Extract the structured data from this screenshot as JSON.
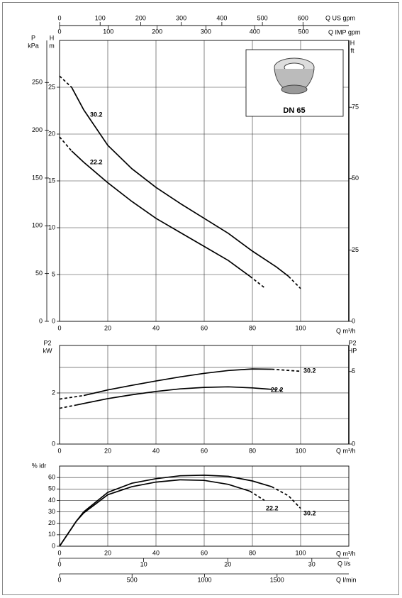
{
  "chart_data": [
    {
      "type": "line",
      "inset": "DN 65",
      "xlabel": "Q m³/h",
      "xlim": [
        0,
        120
      ],
      "xticks": [
        0,
        20,
        40,
        60,
        80,
        100
      ],
      "ylabel": [
        "H",
        "m"
      ],
      "ylim": [
        0,
        30
      ],
      "yticks": [
        0,
        5,
        10,
        15,
        20,
        25
      ],
      "axes": [
        {
          "position": "left-outer",
          "label": [
            "P",
            "kPa"
          ],
          "lim": [
            0,
            294
          ],
          "ticks": [
            0,
            50,
            100,
            150,
            200,
            250
          ]
        },
        {
          "position": "right",
          "label": [
            "H",
            "ft"
          ],
          "lim": [
            0,
            98.4
          ],
          "ticks": [
            0,
            25,
            50,
            75
          ]
        },
        {
          "position": "top",
          "label": [
            "Q US gpm"
          ],
          "lim": [
            0,
            713
          ],
          "ticks": [
            0,
            100,
            200,
            300,
            400,
            500,
            600
          ]
        },
        {
          "position": "top-2",
          "label": [
            "Q IMP gpm"
          ],
          "lim": [
            0,
            593
          ],
          "ticks": [
            0,
            100,
            200,
            300,
            400,
            500
          ]
        }
      ],
      "series": [
        {
          "name": "30.2",
          "color": "#000000",
          "segments": [
            {
              "style": "dashed",
              "x": [
                0,
                5
              ],
              "values": [
                26.2,
                25.0
              ]
            },
            {
              "style": "solid",
              "x": [
                5,
                10,
                20,
                30,
                40,
                50,
                60,
                70,
                80,
                90,
                95
              ],
              "values": [
                25.0,
                22.6,
                18.8,
                16.3,
                14.3,
                12.6,
                11.0,
                9.4,
                7.5,
                5.8,
                4.8
              ]
            },
            {
              "style": "dashed",
              "x": [
                95,
                100
              ],
              "values": [
                4.8,
                3.5
              ]
            }
          ]
        },
        {
          "name": "22.2",
          "color": "#000000",
          "segments": [
            {
              "style": "dashed",
              "x": [
                0,
                5
              ],
              "values": [
                19.7,
                18.2
              ]
            },
            {
              "style": "solid",
              "x": [
                5,
                10,
                20,
                30,
                40,
                50,
                60,
                70,
                79
              ],
              "values": [
                18.2,
                17.0,
                14.8,
                12.8,
                11.0,
                9.5,
                8.0,
                6.5,
                4.8
              ]
            },
            {
              "style": "dashed",
              "x": [
                79,
                85
              ],
              "values": [
                4.8,
                3.6
              ]
            }
          ]
        }
      ]
    },
    {
      "type": "line",
      "xlabel": "Q m³/h",
      "xlim": [
        0,
        120
      ],
      "xticks": [
        0,
        20,
        40,
        60,
        80,
        100
      ],
      "ylabel": [
        "P2",
        "kW"
      ],
      "ylim": [
        0,
        3.86
      ],
      "yticks": [
        0,
        2
      ],
      "ygrid": [
        1,
        2,
        3
      ],
      "axes": [
        {
          "position": "right",
          "label": [
            "P2",
            "HP"
          ],
          "lim": [
            0,
            6.8
          ],
          "ticks": [
            0,
            5
          ]
        }
      ],
      "series": [
        {
          "name": "30.2",
          "color": "#000000",
          "segments": [
            {
              "style": "dashed",
              "x": [
                0,
                10
              ],
              "values": [
                1.76,
                1.9
              ]
            },
            {
              "style": "solid",
              "x": [
                10,
                20,
                30,
                40,
                50,
                60,
                70,
                80,
                88
              ],
              "values": [
                1.9,
                2.12,
                2.3,
                2.47,
                2.63,
                2.77,
                2.88,
                2.94,
                2.93
              ]
            },
            {
              "style": "dashed",
              "x": [
                88,
                100
              ],
              "values": [
                2.93,
                2.85
              ]
            }
          ]
        },
        {
          "name": "22.2",
          "color": "#000000",
          "segments": [
            {
              "style": "dashed",
              "x": [
                0,
                7
              ],
              "values": [
                1.4,
                1.53
              ]
            },
            {
              "style": "solid",
              "x": [
                7,
                20,
                30,
                40,
                50,
                60,
                70,
                80,
                87
              ],
              "values": [
                1.53,
                1.78,
                1.93,
                2.06,
                2.16,
                2.22,
                2.24,
                2.2,
                2.15
              ]
            },
            {
              "style": "dashed",
              "x": [
                87,
                93
              ],
              "values": [
                2.15,
                2.1
              ]
            }
          ]
        }
      ]
    },
    {
      "type": "line",
      "xlabel": "Q m³/h",
      "xlim": [
        0,
        120
      ],
      "xticks": [
        0,
        20,
        40,
        60,
        80,
        100
      ],
      "ylabel": [
        "% idr"
      ],
      "ylim": [
        0,
        70
      ],
      "yticks": [
        0,
        10,
        20,
        30,
        40,
        50,
        60
      ],
      "axes": [
        {
          "position": "bottom-2",
          "label": [
            "Q l/s"
          ],
          "lim": [
            0,
            34.4
          ],
          "ticks": [
            0,
            10,
            20,
            30
          ]
        },
        {
          "position": "bottom-3",
          "label": [
            "Q l/min"
          ],
          "lim": [
            0,
            1995
          ],
          "ticks": [
            0,
            500,
            1000,
            1500
          ]
        }
      ],
      "series": [
        {
          "name": "30.2",
          "color": "#000000",
          "segments": [
            {
              "style": "solid",
              "x": [
                0,
                7,
                10,
                20,
                30,
                40,
                50,
                60,
                70,
                80,
                88
              ],
              "values": [
                0,
                22,
                30,
                47,
                55,
                59,
                61.5,
                62,
                61,
                57,
                52
              ]
            },
            {
              "style": "dashed",
              "x": [
                88,
                95,
                100
              ],
              "values": [
                52,
                44,
                33
              ]
            }
          ]
        },
        {
          "name": "22.2",
          "color": "#000000",
          "segments": [
            {
              "style": "solid",
              "x": [
                0,
                7,
                10,
                20,
                30,
                40,
                50,
                60,
                70,
                79
              ],
              "values": [
                0,
                22,
                29,
                45,
                52,
                56,
                58,
                57.5,
                54,
                48
              ]
            },
            {
              "style": "dashed",
              "x": [
                79,
                85
              ],
              "values": [
                48,
                40
              ]
            }
          ]
        }
      ]
    }
  ]
}
